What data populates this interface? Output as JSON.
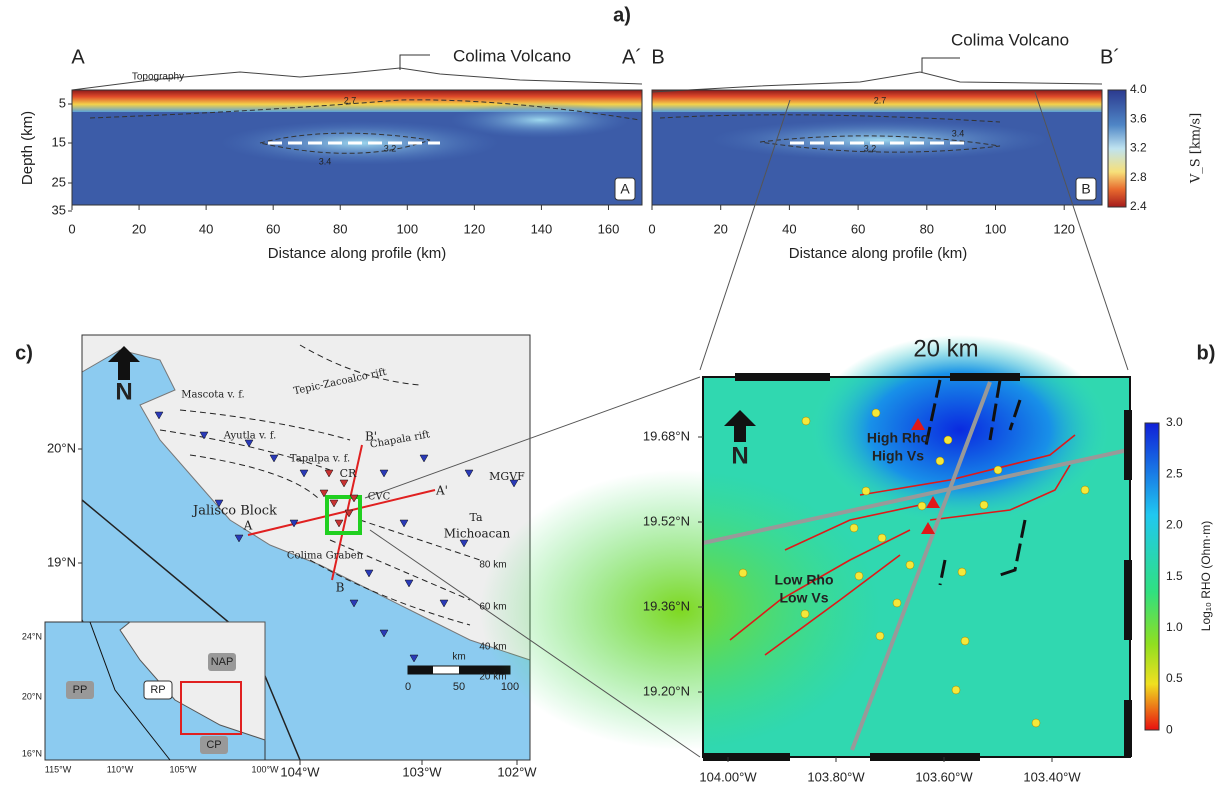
{
  "panel_a": {
    "label": "a)",
    "left": {
      "start": "A",
      "end": "A´",
      "volcano": "Colima Volcano",
      "topography": "Topography",
      "y_label": "Depth (km)",
      "x_label": "Distance along profile (km)",
      "yticks": [
        "5",
        "15",
        "25",
        "35"
      ],
      "xticks": [
        "0",
        "20",
        "40",
        "60",
        "80",
        "100",
        "120",
        "140",
        "160"
      ],
      "contours": [
        "2.7",
        "3.2",
        "3.4"
      ],
      "tag": "A"
    },
    "right": {
      "start": "B",
      "end": "B´",
      "volcano": "Colima Volcano",
      "x_label": "Distance along profile (km)",
      "xticks": [
        "0",
        "20",
        "40",
        "60",
        "80",
        "100",
        "120"
      ],
      "contours": [
        "2.7",
        "3.2",
        "3.4"
      ],
      "tag": "B"
    },
    "colorbar": {
      "label": "V_S [km/s]",
      "ticks": [
        "4.0",
        "3.6",
        "3.2",
        "2.8",
        "2.4"
      ]
    }
  },
  "panel_b": {
    "label": "b)",
    "scale": "20 km",
    "north": "N",
    "annotations": [
      "High Rho",
      "High Vs",
      "Low Rho",
      "Low Vs"
    ],
    "yticks": [
      "19.68°N",
      "19.52°N",
      "19.36°N",
      "19.20°N"
    ],
    "xticks": [
      "104.00°W",
      "103.80°W",
      "103.60°W",
      "103.40°W"
    ],
    "colorbar": {
      "label": "Log₁₀ RHO (Ohm·m)",
      "ticks": [
        "3.0",
        "2.5",
        "2.0",
        "1.5",
        "1.0",
        "0.5",
        "0"
      ]
    }
  },
  "panel_c": {
    "label": "c)",
    "north": "N",
    "yticks": [
      "20°N",
      "19°N"
    ],
    "xticks": [
      "104°W",
      "103°W",
      "102°W"
    ],
    "places": [
      "Tepic-Zacoalco rift",
      "Mascota v. f.",
      "Ayutla v. f.",
      "Chapala rift",
      "Tapalpa v. f.",
      "CR",
      "CVC",
      "MGVF",
      "Jalisco Block",
      "Ta",
      "Michoacan",
      "Colima Graben"
    ],
    "profiles": [
      "A",
      "A'",
      "B",
      "B'"
    ],
    "depths": [
      "80 km",
      "60 km",
      "40 km",
      "20 km"
    ],
    "scalebar": {
      "unit": "km",
      "ticks": [
        "0",
        "50",
        "100"
      ]
    },
    "inset": {
      "yticks": [
        "24°N",
        "20°N",
        "16°N"
      ],
      "xticks": [
        "115°W",
        "110°W",
        "105°W",
        "100°W"
      ],
      "plates": [
        "PP",
        "RP",
        "NAP",
        "CP"
      ]
    }
  }
}
